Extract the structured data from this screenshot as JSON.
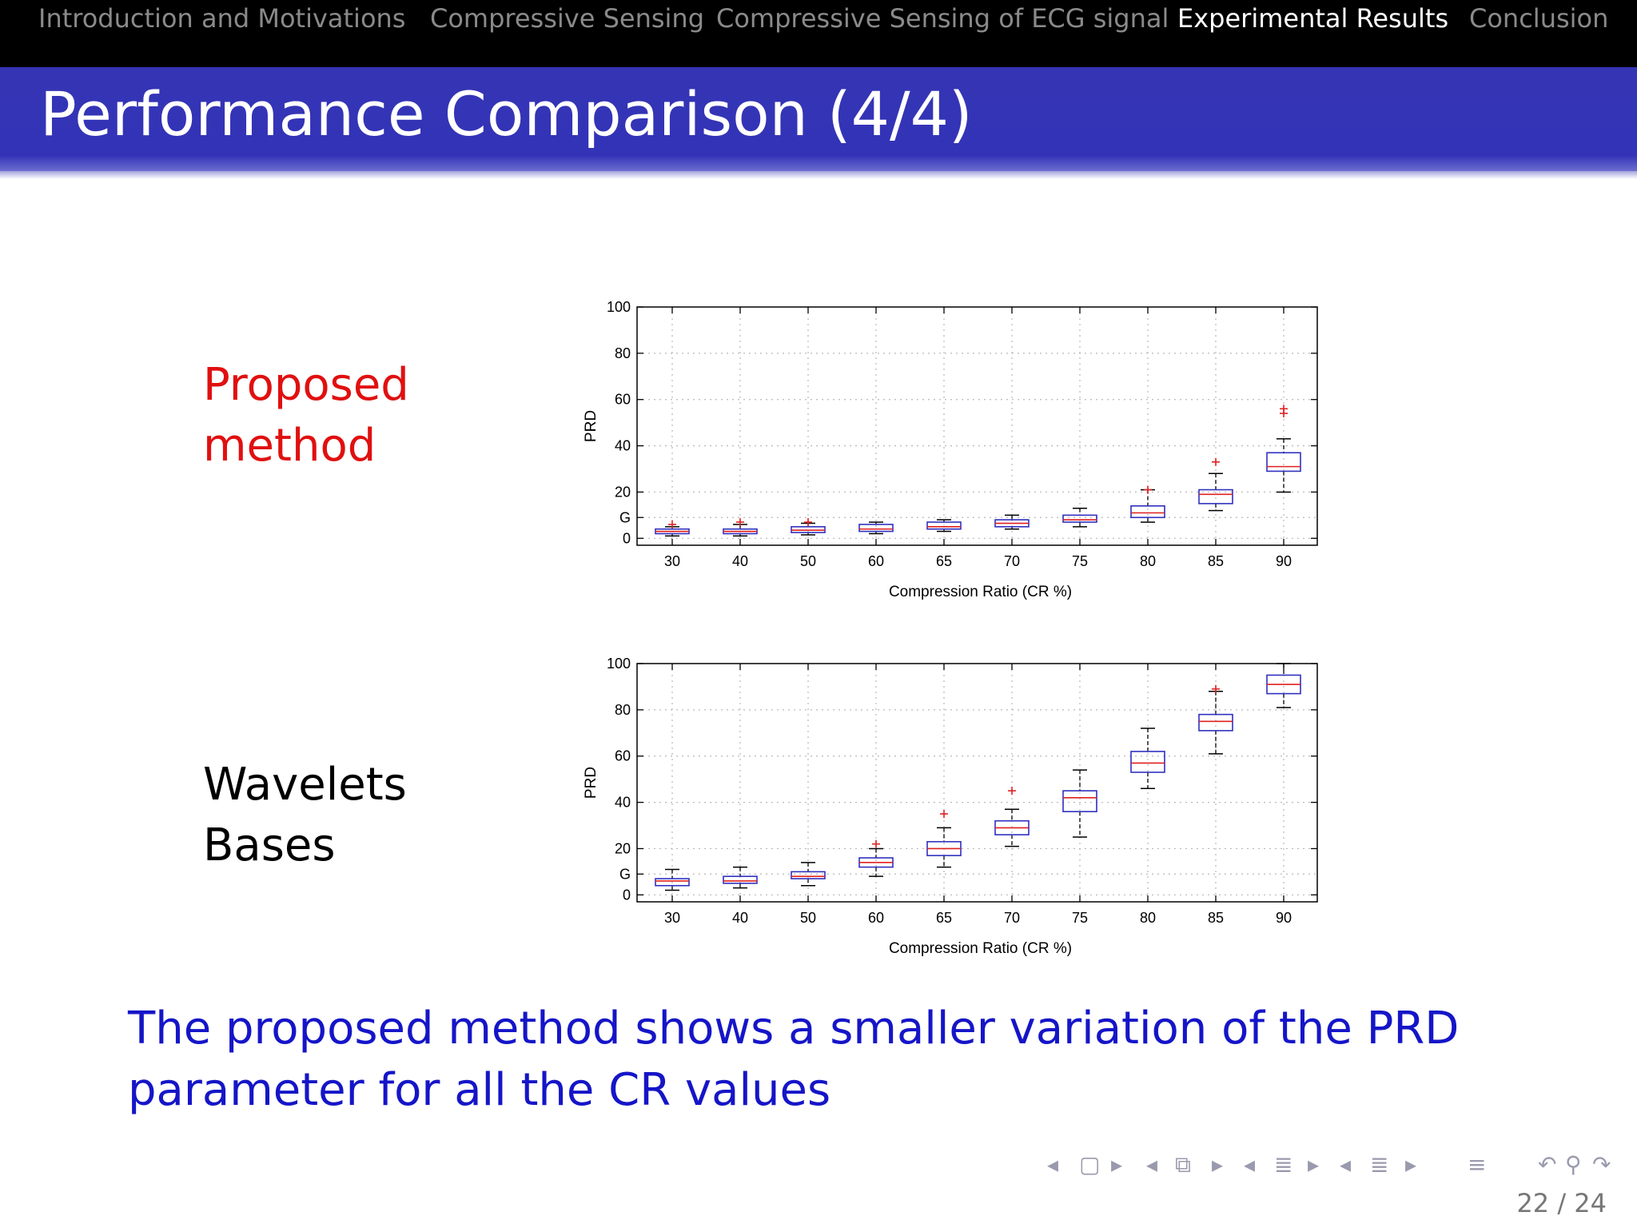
{
  "nav": {
    "sections": [
      {
        "label": "Introduction and Motivations",
        "active": false
      },
      {
        "label": "Compressive Sensing",
        "active": false
      },
      {
        "label": "Compressive Sensing of ECG signal",
        "active": false
      },
      {
        "label": "Experimental Results",
        "active": true
      },
      {
        "label": "Conclusion",
        "active": false
      }
    ]
  },
  "slide": {
    "title": "Performance Comparison (4/4)",
    "label_proposed_line1": "Proposed",
    "label_proposed_line2": "method",
    "label_wavelets_line1": "Wavelets",
    "label_wavelets_line2": "Bases",
    "conclusion_line1": "The proposed method shows a smaller variation of the PRD",
    "conclusion_line2": "parameter for all the CR values",
    "page_current": "22",
    "page_total": "24",
    "page_sep": "/"
  },
  "colors": {
    "nav_bg": "#000000",
    "title_bar": "#3434b4",
    "proposed_label": "#e01010",
    "conclusion_text": "#1515c8",
    "box": "#3030c0",
    "median": "#e02020",
    "outlier": "#e02020"
  },
  "beamer_nav_icons": [
    "arrow-left-icon",
    "frame-icon",
    "arrow-right-icon",
    "arrow-left-icon",
    "subsection-icon",
    "arrow-right-icon",
    "arrow-left-icon",
    "section-icon",
    "arrow-right-icon",
    "arrow-left-icon",
    "document-icon",
    "arrow-right-icon",
    "align-icon",
    "undo-icon",
    "search-icon",
    "redo-icon"
  ],
  "chart_data": [
    {
      "type": "box",
      "xlabel": "Compression Ratio (CR %)",
      "ylabel": "PRD",
      "categories": [
        "30",
        "40",
        "50",
        "60",
        "65",
        "70",
        "75",
        "80",
        "85",
        "90"
      ],
      "ylim": [
        -3,
        100
      ],
      "yticks": [
        0,
        20,
        40,
        60,
        80,
        100
      ],
      "extra_ytick": {
        "value": 9,
        "label": "G"
      },
      "grid": true,
      "boxes": [
        {
          "whisker_low": 1,
          "q1": 2,
          "median": 3,
          "q3": 4,
          "whisker_high": 5,
          "outliers": [
            6
          ]
        },
        {
          "whisker_low": 1,
          "q1": 2,
          "median": 3,
          "q3": 4,
          "whisker_high": 6,
          "outliers": [
            7
          ]
        },
        {
          "whisker_low": 1.5,
          "q1": 2.5,
          "median": 3.5,
          "q3": 5,
          "whisker_high": 6.5,
          "outliers": [
            7
          ]
        },
        {
          "whisker_low": 2,
          "q1": 3,
          "median": 4,
          "q3": 6,
          "whisker_high": 7,
          "outliers": []
        },
        {
          "whisker_low": 3,
          "q1": 4,
          "median": 5,
          "q3": 7,
          "whisker_high": 8,
          "outliers": []
        },
        {
          "whisker_low": 4,
          "q1": 5,
          "median": 6.5,
          "q3": 8,
          "whisker_high": 10,
          "outliers": []
        },
        {
          "whisker_low": 5,
          "q1": 7,
          "median": 8,
          "q3": 10,
          "whisker_high": 13,
          "outliers": []
        },
        {
          "whisker_low": 7,
          "q1": 9,
          "median": 11,
          "q3": 14,
          "whisker_high": 21,
          "outliers": [
            21
          ]
        },
        {
          "whisker_low": 12,
          "q1": 15,
          "median": 19,
          "q3": 21,
          "whisker_high": 28,
          "outliers": [
            33
          ]
        },
        {
          "whisker_low": 20,
          "q1": 29,
          "median": 31,
          "q3": 37,
          "whisker_high": 43,
          "outliers": [
            54,
            56
          ]
        }
      ]
    },
    {
      "type": "box",
      "xlabel": "Compression Ratio (CR %)",
      "ylabel": "PRD",
      "categories": [
        "30",
        "40",
        "50",
        "60",
        "65",
        "70",
        "75",
        "80",
        "85",
        "90"
      ],
      "ylim": [
        -3,
        100
      ],
      "yticks": [
        0,
        20,
        40,
        60,
        80,
        100
      ],
      "extra_ytick": {
        "value": 9,
        "label": "G"
      },
      "grid": true,
      "boxes": [
        {
          "whisker_low": 2,
          "q1": 4,
          "median": 6,
          "q3": 7,
          "whisker_high": 11,
          "outliers": []
        },
        {
          "whisker_low": 3,
          "q1": 5,
          "median": 6,
          "q3": 8,
          "whisker_high": 12,
          "outliers": []
        },
        {
          "whisker_low": 4,
          "q1": 7,
          "median": 8,
          "q3": 10,
          "whisker_high": 14,
          "outliers": []
        },
        {
          "whisker_low": 8,
          "q1": 12,
          "median": 14,
          "q3": 16,
          "whisker_high": 20,
          "outliers": [
            22
          ]
        },
        {
          "whisker_low": 12,
          "q1": 17,
          "median": 20,
          "q3": 23,
          "whisker_high": 29,
          "outliers": [
            35
          ]
        },
        {
          "whisker_low": 21,
          "q1": 26,
          "median": 29,
          "q3": 32,
          "whisker_high": 37,
          "outliers": [
            45
          ]
        },
        {
          "whisker_low": 25,
          "q1": 36,
          "median": 42,
          "q3": 45,
          "whisker_high": 54,
          "outliers": []
        },
        {
          "whisker_low": 46,
          "q1": 53,
          "median": 57,
          "q3": 62,
          "whisker_high": 72,
          "outliers": []
        },
        {
          "whisker_low": 61,
          "q1": 71,
          "median": 75,
          "q3": 78,
          "whisker_high": 88,
          "outliers": [
            89
          ]
        },
        {
          "whisker_low": 81,
          "q1": 87,
          "median": 91,
          "q3": 95,
          "whisker_high": 100,
          "outliers": []
        }
      ]
    }
  ]
}
